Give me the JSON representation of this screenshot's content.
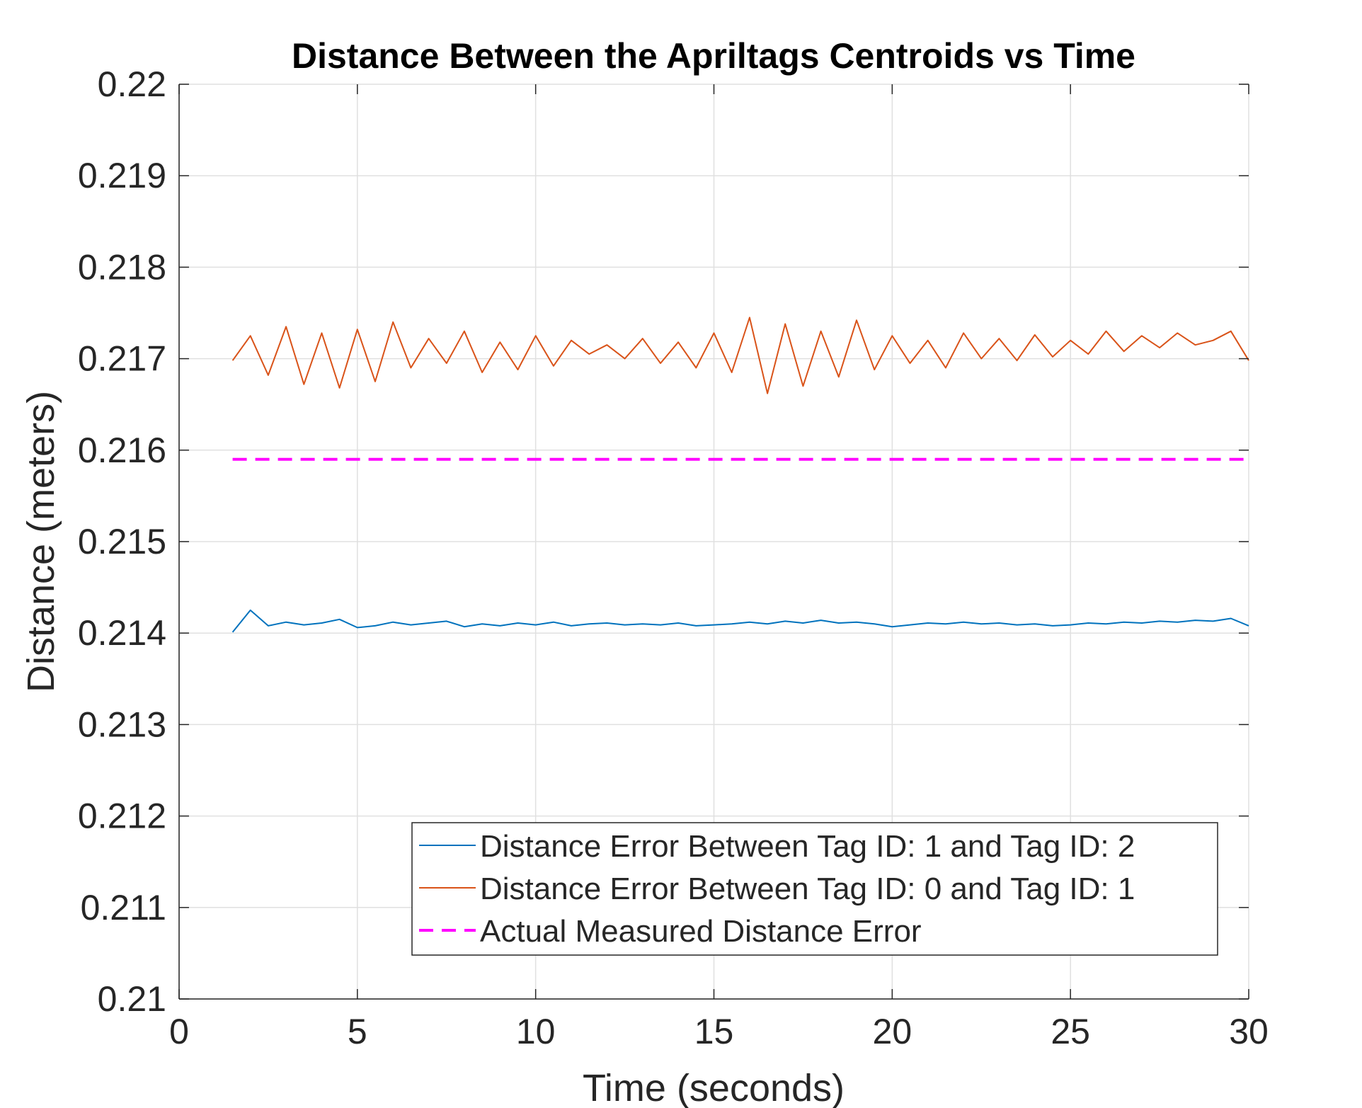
{
  "chart_data": {
    "type": "line",
    "title": "Distance Between the Apriltags Centroids vs Time",
    "xlabel": "Time (seconds)",
    "ylabel": "Distance (meters)",
    "xlim": [
      0,
      30
    ],
    "ylim": [
      0.21,
      0.22
    ],
    "xticks": [
      0,
      5,
      10,
      15,
      20,
      25,
      30
    ],
    "yticks": [
      0.21,
      0.211,
      0.212,
      0.213,
      0.214,
      0.215,
      0.216,
      0.217,
      0.218,
      0.219,
      0.22
    ],
    "grid": true,
    "legend_position": "bottom-right",
    "series": [
      {
        "name": "Distance Error Between Tag ID: 1 and Tag ID: 2",
        "color": "#0072BD",
        "style": "solid",
        "x": [
          1.5,
          2,
          2.5,
          3,
          3.5,
          4,
          4.5,
          5,
          5.5,
          6,
          6.5,
          7,
          7.5,
          8,
          8.5,
          9,
          9.5,
          10,
          10.5,
          11,
          11.5,
          12,
          12.5,
          13,
          13.5,
          14,
          14.5,
          15,
          15.5,
          16,
          16.5,
          17,
          17.5,
          18,
          18.5,
          19,
          19.5,
          20,
          20.5,
          21,
          21.5,
          22,
          22.5,
          23,
          23.5,
          24,
          24.5,
          25,
          25.5,
          26,
          26.5,
          27,
          27.5,
          28,
          28.5,
          29,
          29.5,
          30
        ],
        "y": [
          0.21401,
          0.21425,
          0.21408,
          0.21412,
          0.21409,
          0.21411,
          0.21415,
          0.21406,
          0.21408,
          0.21412,
          0.21409,
          0.21411,
          0.21413,
          0.21407,
          0.2141,
          0.21408,
          0.21411,
          0.21409,
          0.21412,
          0.21408,
          0.2141,
          0.21411,
          0.21409,
          0.2141,
          0.21409,
          0.21411,
          0.21408,
          0.21409,
          0.2141,
          0.21412,
          0.2141,
          0.21413,
          0.21411,
          0.21414,
          0.21411,
          0.21412,
          0.2141,
          0.21407,
          0.21409,
          0.21411,
          0.2141,
          0.21412,
          0.2141,
          0.21411,
          0.21409,
          0.2141,
          0.21408,
          0.21409,
          0.21411,
          0.2141,
          0.21412,
          0.21411,
          0.21413,
          0.21412,
          0.21414,
          0.21413,
          0.21416,
          0.21408
        ]
      },
      {
        "name": "Distance Error Between Tag ID: 0 and Tag ID: 1",
        "color": "#D95319",
        "style": "solid",
        "x": [
          1.5,
          2,
          2.5,
          3,
          3.5,
          4,
          4.5,
          5,
          5.5,
          6,
          6.5,
          7,
          7.5,
          8,
          8.5,
          9,
          9.5,
          10,
          10.5,
          11,
          11.5,
          12,
          12.5,
          13,
          13.5,
          14,
          14.5,
          15,
          15.5,
          16,
          16.5,
          17,
          17.5,
          18,
          18.5,
          19,
          19.5,
          20,
          20.5,
          21,
          21.5,
          22,
          22.5,
          23,
          23.5,
          24,
          24.5,
          25,
          25.5,
          26,
          26.5,
          27,
          27.5,
          28,
          28.5,
          29,
          29.5,
          30
        ],
        "y": [
          0.21698,
          0.21725,
          0.21682,
          0.21735,
          0.21672,
          0.21728,
          0.21668,
          0.21732,
          0.21675,
          0.2174,
          0.2169,
          0.21722,
          0.21695,
          0.2173,
          0.21685,
          0.21718,
          0.21688,
          0.21725,
          0.21692,
          0.2172,
          0.21705,
          0.21715,
          0.217,
          0.21722,
          0.21695,
          0.21718,
          0.2169,
          0.21728,
          0.21685,
          0.21745,
          0.21662,
          0.21738,
          0.2167,
          0.2173,
          0.2168,
          0.21742,
          0.21688,
          0.21725,
          0.21695,
          0.2172,
          0.2169,
          0.21728,
          0.217,
          0.21722,
          0.21698,
          0.21726,
          0.21702,
          0.2172,
          0.21705,
          0.2173,
          0.21708,
          0.21725,
          0.21712,
          0.21728,
          0.21715,
          0.2172,
          0.2173,
          0.21698
        ]
      },
      {
        "name": "Actual Measured Distance Error",
        "color": "#FF00FF",
        "style": "dashed",
        "x": [
          1.5,
          30
        ],
        "y": [
          0.2159,
          0.2159
        ]
      }
    ]
  }
}
